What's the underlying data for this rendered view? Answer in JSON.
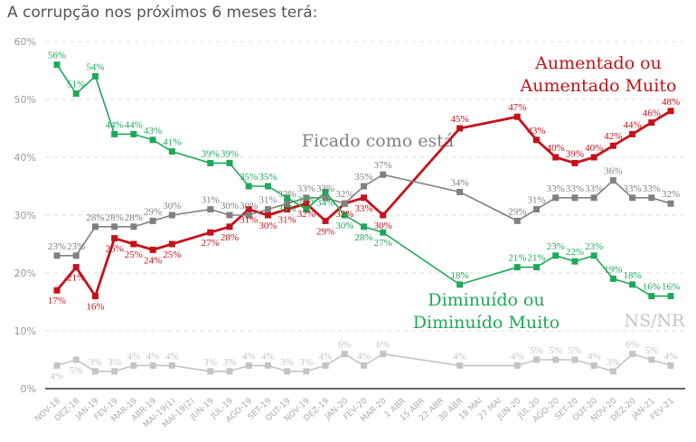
{
  "title": "A corrupção nos próximos 6 meses terá:",
  "chart_data": {
    "type": "line",
    "title": "A corrupção nos próximos 6 meses terá:",
    "xlabel": "",
    "ylabel": "",
    "ylim": [
      0,
      60
    ],
    "yticks": [
      "0%",
      "10%",
      "20%",
      "30%",
      "40%",
      "50%",
      "60%"
    ],
    "grid": true,
    "categories": [
      "NOV-18",
      "DEZ-18",
      "JAN-19",
      "FEV-19",
      "MAR-19",
      "ABR-19",
      "MAI-19(1)",
      "MAI-19(2)",
      "JUN-19",
      "JUL-19",
      "AGO-19",
      "SET-19",
      "OUT-19",
      "NOV-19",
      "DEZ-19",
      "JAN-20",
      "FEV-20",
      "MAR-20",
      "1 ABR",
      "15 ABR",
      "22 ABR",
      "30 ABR",
      "18 MAI",
      "27 MAI",
      "JUN-20",
      "JUL-20",
      "AGO-20",
      "SET-20",
      "OUT-20",
      "NOV-20",
      "DEZ-20",
      "JAN-21",
      "FEV-21"
    ],
    "series": [
      {
        "name": "Aumentado ou Aumentado Muito",
        "name_lines": [
          "Aumentado ou",
          "Aumentado Muito"
        ],
        "color": "#c4121a",
        "values": [
          17,
          21,
          16,
          26,
          25,
          24,
          25,
          null,
          27,
          28,
          31,
          30,
          31,
          32,
          29,
          32,
          33,
          30,
          null,
          null,
          null,
          45,
          null,
          null,
          47,
          43,
          40,
          39,
          40,
          42,
          44,
          46,
          48
        ]
      },
      {
        "name": "Ficado como está",
        "name_lines": [
          "Ficado como está"
        ],
        "color": "#808080",
        "values": [
          23,
          23,
          28,
          28,
          28,
          29,
          30,
          null,
          31,
          30,
          30,
          31,
          32,
          33,
          33,
          32,
          35,
          37,
          null,
          null,
          null,
          34,
          null,
          null,
          29,
          31,
          33,
          33,
          33,
          36,
          33,
          33,
          32
        ]
      },
      {
        "name": "Diminuído ou Diminuído Muito",
        "name_lines": [
          "Diminuído ou",
          "Diminuído Muito"
        ],
        "color": "#1fa85a",
        "values": [
          56,
          51,
          54,
          44,
          44,
          43,
          41,
          null,
          39,
          39,
          35,
          35,
          33,
          31,
          34,
          30,
          28,
          27,
          null,
          null,
          null,
          18,
          null,
          null,
          21,
          21,
          23,
          22,
          23,
          19,
          18,
          16,
          16
        ]
      },
      {
        "name": "NS/NR",
        "name_lines": [
          "NS/NR"
        ],
        "color": "#c4c4c4",
        "values": [
          4,
          5,
          3,
          3,
          4,
          4,
          4,
          null,
          3,
          3,
          4,
          4,
          3,
          3,
          4,
          6,
          4,
          6,
          null,
          null,
          null,
          4,
          null,
          null,
          4,
          5,
          5,
          5,
          4,
          3,
          6,
          5,
          4
        ]
      }
    ]
  }
}
